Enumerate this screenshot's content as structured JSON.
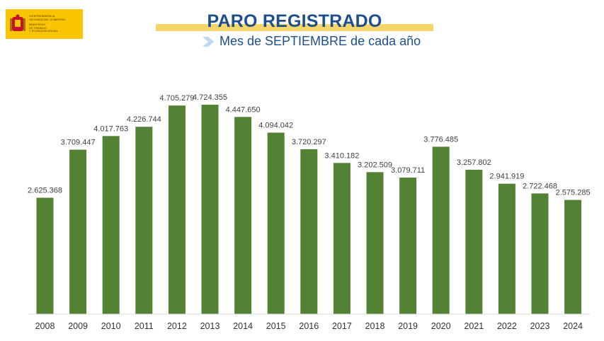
{
  "header": {
    "logo_lines": [
      "VICEPRESIDENCIA",
      "SEGUNDA DEL GOBIERNO",
      "MINISTERIO",
      "DE TRABAJO",
      "Y ECONOMÍA SOCIAL"
    ],
    "logo_color": "#f9c400",
    "title": "PARO REGISTRADO",
    "subtitle": "Mes de SEPTIEMBRE de cada año",
    "title_color": "#1f4e8c",
    "accent_color": "#f5d66b"
  },
  "chart_data": {
    "type": "bar",
    "title": "PARO REGISTRADO",
    "subtitle": "Mes de SEPTIEMBRE de cada año",
    "categories": [
      "2008",
      "2009",
      "2010",
      "2011",
      "2012",
      "2013",
      "2014",
      "2015",
      "2016",
      "2017",
      "2018",
      "2019",
      "2020",
      "2021",
      "2022",
      "2023",
      "2024"
    ],
    "values": [
      2625368,
      3709447,
      4017763,
      4226744,
      4705279,
      4724355,
      4447650,
      4094042,
      3720297,
      3410182,
      3202509,
      3079711,
      3776485,
      3257802,
      2941919,
      2722468,
      2575285
    ],
    "labels": [
      "2.625.368",
      "3.709.447",
      "4.017.763",
      "4.226.744",
      "4.705.279",
      "4.724.355",
      "4.447.650",
      "4.094.042",
      "3.720.297",
      "3.410.182",
      "3.202.509",
      "3.079.711",
      "3.776.485",
      "3.257.802",
      "2.941.919",
      "2.722.468",
      "2.575.285"
    ],
    "bar_color": "#548235",
    "xlabel": "",
    "ylabel": "",
    "grid": false,
    "legend": "none"
  }
}
